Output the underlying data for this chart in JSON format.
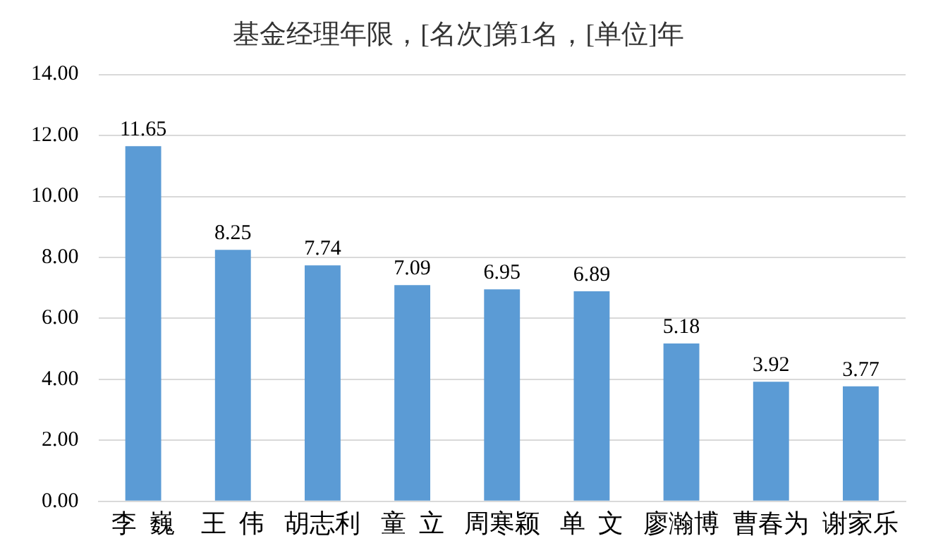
{
  "chart_data": {
    "type": "bar",
    "title": "基金经理年限，[名次]第1名，[单位]年",
    "categories": [
      "李  巍",
      "王  伟",
      "胡志利",
      "童  立",
      "周寒颖",
      "单  文",
      "廖瀚博",
      "曹春为",
      "谢家乐"
    ],
    "values": [
      11.65,
      8.25,
      7.74,
      7.09,
      6.95,
      6.89,
      5.18,
      3.92,
      3.77
    ],
    "color": "#5b9bd5",
    "ylim": [
      0,
      14
    ],
    "yticks": [
      {
        "value": 0,
        "label": "0.00"
      },
      {
        "value": 2,
        "label": "2.00"
      },
      {
        "value": 4,
        "label": "4.00"
      },
      {
        "value": 6,
        "label": "6.00"
      },
      {
        "value": 8,
        "label": "8.00"
      },
      {
        "value": 10,
        "label": "10.00"
      },
      {
        "value": 12,
        "label": "12.00"
      },
      {
        "value": 14,
        "label": "14.00"
      }
    ],
    "grid": "y",
    "legend": false,
    "data_labels": true
  }
}
